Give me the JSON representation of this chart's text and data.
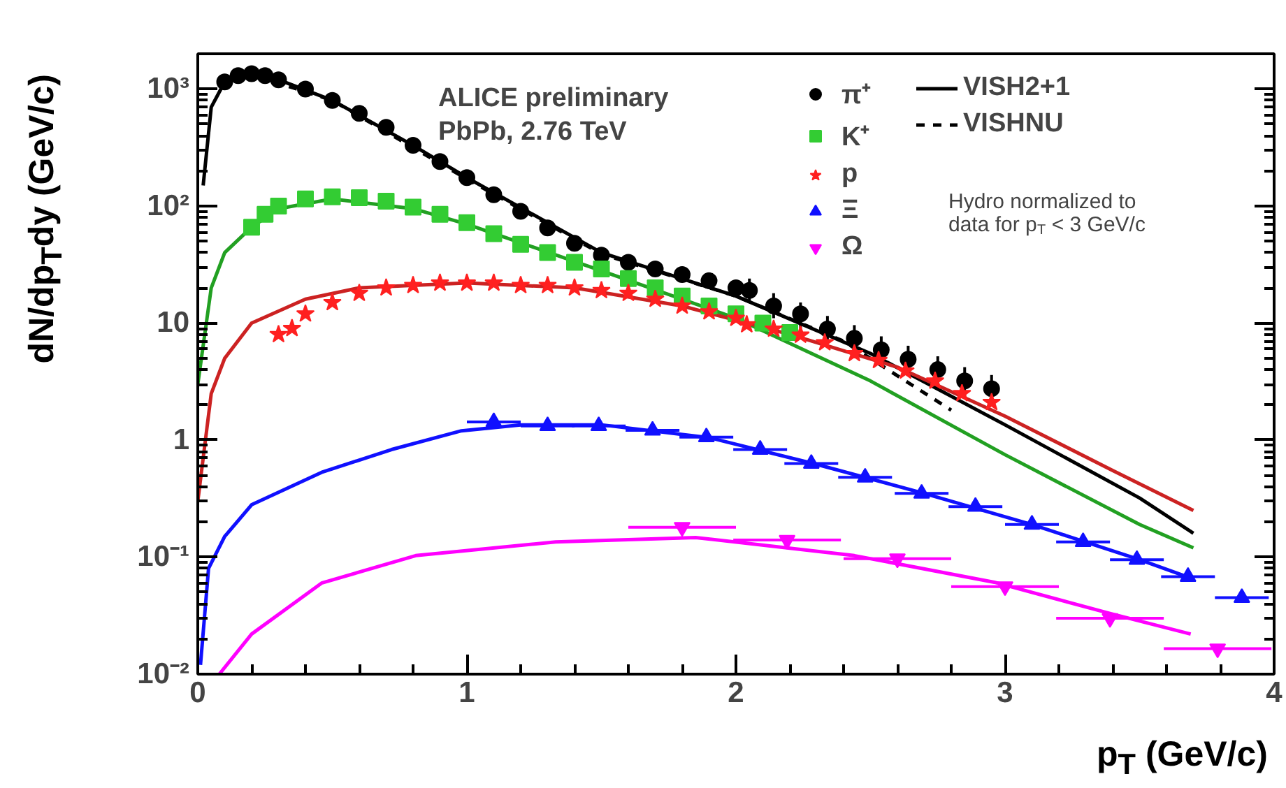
{
  "chart_data": {
    "type": "scatter",
    "xlabel": "p$_{T}$ (GeV/c)",
    "ylabel": "dN/dp$_{T}$dy (GeV/c)",
    "xlim": [
      0,
      4
    ],
    "xticks": [
      0,
      1,
      2,
      3,
      4
    ],
    "ylim": [
      0.01,
      2000
    ],
    "yticks": [
      {
        "value": 0.01,
        "label": "10⁻²"
      },
      {
        "value": 0.1,
        "label": "10⁻¹"
      },
      1,
      10,
      {
        "value": 100,
        "label": "10²"
      },
      {
        "value": 1000,
        "label": "10³"
      }
    ],
    "log": true,
    "grid": false,
    "legend": "top right",
    "annotations": [
      "ALICE preliminary",
      "PbPb, 2.76 TeV",
      "Hydro normalized to\ndata for p$_{T}$ < 3 GeV/c"
    ],
    "series": [
      {
        "type": "line",
        "name": "VISH2+1",
        "color": "#000000",
        "line_style": "solid",
        "x": [
          0.02,
          0.05,
          0.1,
          0.2,
          0.3,
          0.5,
          0.8,
          1.0,
          1.5,
          2.0,
          2.5,
          3.0,
          3.5,
          3.7
        ],
        "values": [
          150,
          700,
          1150,
          1350,
          1200,
          800,
          330,
          175,
          40,
          17,
          5.5,
          1.35,
          0.32,
          0.16
        ]
      },
      {
        "type": "line",
        "name": "VISHNU",
        "color": "#000000",
        "line_style": "dashed",
        "x": [
          0.1,
          0.2,
          0.5,
          1.0,
          1.5,
          2.0,
          2.4,
          2.8
        ],
        "values": [
          1150,
          1330,
          800,
          170,
          39,
          17,
          7,
          1.8
        ]
      },
      {
        "type": "line",
        "color": "#22a022",
        "line_style": "solid",
        "x": [
          0.0,
          0.05,
          0.1,
          0.2,
          0.3,
          0.5,
          0.8,
          1.0,
          1.5,
          2.0,
          2.5,
          3.0,
          3.5,
          3.7
        ],
        "values": [
          3,
          20,
          40,
          66,
          95,
          115,
          95,
          70,
          28,
          11,
          3.2,
          0.75,
          0.19,
          0.12
        ]
      },
      {
        "type": "line",
        "color": "#cc2222",
        "line_style": "solid",
        "x": [
          0.0,
          0.05,
          0.1,
          0.2,
          0.4,
          0.6,
          1.0,
          1.4,
          1.8,
          2.2,
          2.6,
          3.0,
          3.4,
          3.7
        ],
        "values": [
          0.3,
          2.5,
          5,
          10,
          16,
          20,
          22,
          20,
          14,
          8,
          4.2,
          1.6,
          0.55,
          0.25
        ]
      },
      {
        "type": "line",
        "color": "#1010ff",
        "line_style": "solid",
        "x": [
          0.01,
          0.04,
          0.1,
          0.2,
          0.46,
          0.72,
          0.98,
          1.2,
          1.5,
          1.9,
          2.3,
          2.7,
          3.1,
          3.5,
          3.7
        ],
        "values": [
          0.012,
          0.08,
          0.15,
          0.28,
          0.53,
          0.83,
          1.2,
          1.35,
          1.35,
          1.05,
          0.62,
          0.35,
          0.19,
          0.095,
          0.065
        ]
      },
      {
        "type": "line",
        "color": "#ff00ff",
        "line_style": "solid",
        "x": [
          0.08,
          0.2,
          0.46,
          0.81,
          1.33,
          1.85,
          2.44,
          2.96,
          3.39,
          3.69
        ],
        "values": [
          0.01,
          0.022,
          0.06,
          0.103,
          0.135,
          0.147,
          0.103,
          0.061,
          0.033,
          0.022
        ]
      },
      {
        "type": "scatter",
        "name": "π⁺",
        "color": "#000000",
        "marker": "circle",
        "x": [
          0.1,
          0.15,
          0.2,
          0.25,
          0.3,
          0.4,
          0.5,
          0.6,
          0.7,
          0.8,
          0.9,
          1.0,
          1.1,
          1.2,
          1.3,
          1.4,
          1.5,
          1.6,
          1.7,
          1.8,
          1.9,
          2.0,
          2.05,
          2.14,
          2.24,
          2.34,
          2.44,
          2.54,
          2.64,
          2.75,
          2.85,
          2.95
        ],
        "values": [
          1150,
          1300,
          1350,
          1300,
          1200,
          1000,
          800,
          620,
          470,
          330,
          240,
          175,
          125,
          90,
          65,
          48,
          38,
          33,
          29,
          26,
          23,
          20,
          19,
          14,
          12,
          8.9,
          7.4,
          5.9,
          4.9,
          4.0,
          3.2,
          2.75
        ],
        "errors": [
          null,
          null,
          null,
          null,
          null,
          null,
          null,
          null,
          null,
          null,
          null,
          null,
          null,
          null,
          null,
          null,
          null,
          null,
          null,
          null,
          null,
          null,
          [
            15,
            24
          ],
          [
            11,
            18
          ],
          [
            9,
            15
          ],
          [
            6.8,
            11.5
          ],
          [
            5.6,
            9.6
          ],
          [
            4.5,
            7.7
          ],
          [
            3.7,
            6.4
          ],
          [
            3.0,
            5.2
          ],
          [
            2.4,
            4.2
          ],
          [
            2.1,
            3.6
          ]
        ]
      },
      {
        "type": "scatter",
        "name": "K⁺",
        "color": "#33cc33",
        "marker": "square",
        "x": [
          0.2,
          0.25,
          0.3,
          0.4,
          0.5,
          0.6,
          0.7,
          0.8,
          0.9,
          1.0,
          1.1,
          1.2,
          1.3,
          1.4,
          1.5,
          1.6,
          1.7,
          1.8,
          1.9,
          2.0,
          2.1,
          2.2
        ],
        "values": [
          66,
          85,
          100,
          115,
          120,
          118,
          110,
          98,
          85,
          72,
          58,
          47,
          40,
          33,
          29,
          24,
          20,
          17,
          14,
          12,
          10,
          8.3
        ]
      },
      {
        "type": "scatter",
        "name": "p",
        "color": "#ff2020",
        "marker": "star",
        "x": [
          0.3,
          0.35,
          0.4,
          0.5,
          0.6,
          0.7,
          0.8,
          0.9,
          1.0,
          1.1,
          1.2,
          1.3,
          1.4,
          1.5,
          1.6,
          1.7,
          1.8,
          1.9,
          2.0,
          2.04,
          2.14,
          2.24,
          2.33,
          2.44,
          2.53,
          2.63,
          2.74,
          2.84,
          2.95
        ],
        "values": [
          8,
          9,
          12,
          15,
          18,
          20,
          21,
          22,
          22,
          22,
          21,
          21,
          20,
          19,
          18,
          16,
          14,
          12.5,
          11,
          9.7,
          8.9,
          7.9,
          6.8,
          5.5,
          4.8,
          3.9,
          3.2,
          2.5,
          2.1
        ]
      },
      {
        "type": "scatter",
        "name": "Ξ",
        "color": "#1010ff",
        "marker": "triangle",
        "x": [
          1.1,
          1.3,
          1.49,
          1.69,
          1.89,
          2.09,
          2.28,
          2.48,
          2.69,
          2.89,
          3.1,
          3.29,
          3.49,
          3.68,
          3.88
        ],
        "values": [
          1.43,
          1.32,
          1.32,
          1.21,
          1.06,
          0.83,
          0.63,
          0.48,
          0.35,
          0.27,
          0.19,
          0.135,
          0.095,
          0.068,
          0.045
        ],
        "xerrors": [
          0.1,
          0.1,
          0.1,
          0.1,
          0.1,
          0.1,
          0.1,
          0.1,
          0.1,
          0.1,
          0.1,
          0.1,
          0.1,
          0.1,
          0.1
        ]
      },
      {
        "type": "scatter",
        "name": "Ω",
        "color": "#ff00ff",
        "marker": "triangle_down",
        "x": [
          1.8,
          2.19,
          2.6,
          3.0,
          3.39,
          3.79
        ],
        "values": [
          0.18,
          0.14,
          0.097,
          0.056,
          0.03,
          0.0165
        ],
        "xerrors": [
          0.2,
          0.2,
          0.2,
          0.2,
          0.2,
          0.2
        ]
      }
    ]
  }
}
